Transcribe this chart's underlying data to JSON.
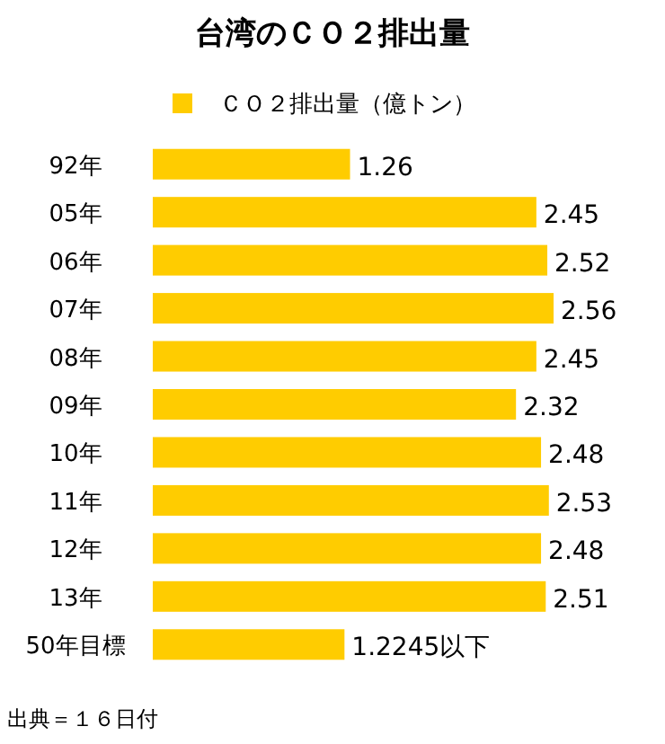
{
  "chart_data": {
    "type": "bar",
    "orientation": "horizontal",
    "title": "台湾のＣＯ２排出量",
    "categories": [
      "92年",
      "05年",
      "06年",
      "07年",
      "08年",
      "09年",
      "10年",
      "11年",
      "12年",
      "13年",
      "50年目標"
    ],
    "series": [
      {
        "name": "ＣＯ２排出量（億トン）",
        "color": "#ffcc00",
        "values": [
          1.26,
          2.45,
          2.52,
          2.56,
          2.45,
          2.32,
          2.48,
          2.53,
          2.48,
          2.51,
          1.2245
        ],
        "value_labels": [
          "1.26",
          "2.45",
          "2.52",
          "2.56",
          "2.45",
          "2.32",
          "2.48",
          "2.53",
          "2.48",
          "2.51",
          "1.2245以下"
        ]
      }
    ],
    "legend": "top",
    "annotations": [
      "出典＝１６日付"
    ]
  }
}
